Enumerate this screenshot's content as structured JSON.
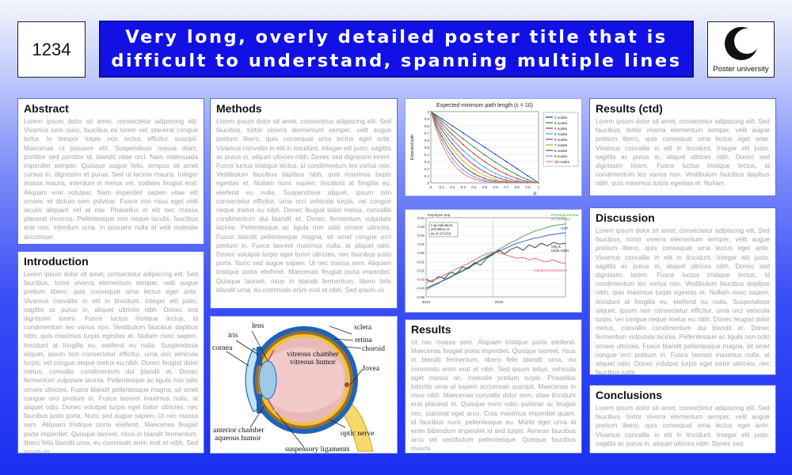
{
  "poster_id": "1234",
  "title": "Very long, overly detailed poster title  that is difficult to understand, spanning multiple lines",
  "logo": {
    "icon": "moon-logo-icon",
    "text": "Poster university"
  },
  "sections": {
    "abstract": {
      "heading": "Abstract",
      "body": "Lorem ipsum dolor sit amet, consectetur adipiscing elit. Vivamus sem nunc, faucibus eu lorem vel, placerat congue tortor. In tempor turpis non lectus efficitur suscipit. Maecenas ut posuere elit. Suspendisse massa diam, porttitor sed porttitor id, blandit vitae orci. Nam malesuada imperdiet semper. Quisque augue felis, tempus sit amet cursus in, dignissim et purus. Sed ut lacinia mauris. Integer massa mauris, interdum in metus vel, sodales feugiat erat. Aliquam erat volutpat. Nam imperdiet sapien vitae elit ornare, et dictum sem pulvinar. Fusce non risus eget velit iaculis aliquam vel at nisi. Phasellus in elit nec massa placerat rhoncus. Pellentesque non neque iaculis, faucibus erat non, interdum urna. In posuere nulla id velit molestie accumsan"
    },
    "introduction": {
      "heading": "Introduction",
      "body": "Lorem ipsum dolor sit amet, consectetur adipiscing elit. Sed faucibus, tortor viverra elementum semper, velit augue pretium libero, quis consequat urna lectus eget ante. Vivamus convallis in elit in tincidunt. Integer elit justo, sagittis ac purus in, aliquet ultrices nibh. Donec sed dignissim lorem. Fusce luctus tristique lectus, id condimentum leo varius non. Vestibulum faucibus dapibus nibh, quis maximus turpis egestas et. Nullam nunc sapien, tincidunt at fringilla eu, eleifend eu nulla. Suspendisse aliquet, ipsum non consectetur efficitur, urna orci vehicula turpis, vel congue neque metus eu nibh. Donec feugiat dolor metus, convallis condimentum dui blandit et. Donec fermentum vulputate lacinia. Pellentesque ac ligula non odio ornare ultricies. Fusce blandit pellentesque magna, sit amet congue orci pretium in. Fusce laoreet maximus nulla, at aliquet odio. Donec volutpat turpis eget tortor ultricies, nec faucibus justo porta. Nunc sed augue sapien. Ut nec massa sem. Aliquam tristique porta eleifend. Maecenas feugiat porta imperdiet. Quisque laoreet, risus in blandit fermentum, libero felis blandit urna, eu commodo enim erat et nibh. Sed ipsum us"
    },
    "methods": {
      "heading": "Methods",
      "body": "Lorem ipsum dolor sit amet, consectetur adipiscing elit. Sed faucibus, tortor viverra elementum semper, velit augue pretium libero, quis consequat urna lectus eget ante. Vivamus convallis in elit in tincidunt. Integer elit justo, sagittis ac purus in, aliquet ultrices nibh. Donec sed dignissim lorem. Fusce luctus tristique lectus, id condimentum leo varius non. Vestibulum faucibus dapibus nibh, quis maximus turpis egestas et. Nullam nunc sapien, tincidunt at fringilla eu, eleifend eu nulla. Suspendisse aliquet, ipsum non consectetur efficitur, urna orci vehicula turpis, vel congue neque metus eu nibh. Donec feugiat dolor metus, convallis condimentum dui blandit et. Donec fermentum vulputate lacinia. Pellentesque ac ligula non odio ornare ultricies. Fusce blandit pellentesque magna, sit amet congue orci pretium in. Fusce laoreet maximus nulla, at aliquet odio. Donec volutpat turpis eget tortor ultricies, nec faucibus justo porta. Nunc sed augue sapien. Ut nec massa sem. Aliquam tristique porta eleifend. Maecenas feugiat porta imperdiet. Quisque laoreet, risus in blandit fermentum, libero felis blandit urna, eu commodo enim erat et nibh. Sed ipsum us"
    },
    "results": {
      "heading": "Results",
      "body": "Ut nec massa sem. Aliquam tristique porta eleifend. Maecenas feugiat porta imperdiet. Quisque laoreet, risus in blandit fermentum, libero felis blandit urna, eu commodo enim erat et nibh. Sed ipsum tellus, vehicula eget massa ac, molestie pretium turpis. Phasellus lobortis urna ut sapien accumsan suscipit. Maecenas in risus nibh. Maecenas convallis dolor sem, vitae tincidunt erat placerat et. Quisque nunc odio, pulvinar ac feugiat nec, placerat eget arcu. Cras maximus imperdiet quam, id faucibus nunc pellentesque eu. Morbi eget urna id enim bibendum imperdiet id sed turpis. Aenean faucibus arcu vel vestibulum pellentesque. Quisque faucibus mauris"
    },
    "results_ctd": {
      "heading": "Results (ctd)",
      "body": "Lorem ipsum dolor sit amet, consectetur adipiscing elit. Sed faucibus, tortor viverra elementum semper, velit augue pretium libero, quis consequat urna lectus eget ante. Vivamus convallis in elit in tincidunt. Integer elit justo, sagittis ac purus in, aliquet ultrices nibh. Donec sed dignissim lorem. Fusce luctus tristique lectus, id condimentum leo varius non. Vestibulum faucibus dapibus nibh, quis maximus turpis egestas et. Nullam"
    },
    "discussion": {
      "heading": "Discussion",
      "body": "Lorem ipsum dolor sit amet, consectetur adipiscing elit. Sed faucibus, tortor viverra elementum semper, velit augue pretium libero, quis consequat urna lectus eget ante. Vivamus convallis in elit in tincidunt. Integer elit justo, sagittis ac purus in, aliquet ultrices nibh. Donec sed dignissim lorem. Fusce luctus tristique lectus, id condimentum leo varius non. Vestibulum faucibus dapibus nibh, quis maximus turpis egestas et. Nullam nunc sapien, tincidunt at fringilla eu, eleifend eu nulla. Suspendisse aliquet, ipsum non consectetur efficitur, urna orci vehicula turpis, vel congue neque metus eu nibh. Donec feugiat dolor metus, convallis condimentum dui blandit et. Donec fermentum vulputate lacinia. Pellentesque ac ligula non odio ornare ultricies. Fusce blandit pellentesque magna, sit amet congue orci pretium in. Fusce laoreet maximus nulla, at aliquet odio. Donec volutpat turpis eget tortor ultricies, nec faucibus justo"
    },
    "conclusions": {
      "heading": "Conclusions",
      "body": "Lorem ipsum dolor sit amet, consectetur adipiscing elit. Sed faucibus, tortor viverra elementum semper, velit augue pretium libero, quis consequat urna lectus eget ante. Vivamus convallis in elit in tincidunt. Integer elit justo, sagittis ac purus in, aliquet ultrices nibh. Donec sed"
    }
  },
  "figures": {
    "eye_diagram": {
      "labels": {
        "lens": "lens",
        "iris": "iris",
        "cornea": "cornea",
        "vitreous_chamber": "vitreous chamber",
        "vitreous_humor": "vitreous humor",
        "sclera": "sclera",
        "retina": "retina",
        "choroid": "choroid",
        "fovea": "fovea",
        "anterior_chamber": "anterior chamber",
        "aqueous_humor": "aqueous humor",
        "optic_nerve": "optic nerve",
        "suspensory_ligaments": "suspensory ligaments"
      }
    }
  },
  "chart_data": [
    {
      "type": "line",
      "title": "Expected minimum path length (c = 10)",
      "xlabel": "p",
      "ylabel": "Expected path",
      "xlim": [
        0,
        1
      ],
      "ylim": [
        0,
        1
      ],
      "xticks": [
        "0",
        "0.1",
        "0.2",
        "0.3",
        "0.4",
        "0.5",
        "0.6",
        "0.7",
        "0.8",
        "0.9",
        "1"
      ],
      "yticks": [
        "0",
        "0.1",
        "0.2",
        "0.3",
        "0.4",
        "0.5",
        "0.6",
        "0.7",
        "0.8",
        "0.9",
        "1"
      ],
      "legend_position": "right",
      "series": [
        {
          "name": "2 nodes",
          "color": "#1f3fb4",
          "exponent": 1.0
        },
        {
          "name": "3 nodes",
          "color": "#2e8b3a",
          "exponent": 1.35
        },
        {
          "name": "4 nodes",
          "color": "#d62a2a",
          "exponent": 1.75
        },
        {
          "name": "5 nodes",
          "color": "#20b0b8",
          "exponent": 2.2
        },
        {
          "name": "6 nodes",
          "color": "#a02ab0",
          "exponent": 2.7
        },
        {
          "name": "7 nodes",
          "color": "#c8b000",
          "exponent": 3.3
        },
        {
          "name": "8 nodes",
          "color": "#555555",
          "exponent": 4.0
        },
        {
          "name": "9 nodes",
          "color": "#8a8ad8",
          "exponent": 4.8
        },
        {
          "name": "10 nodes",
          "color": "#e08080",
          "exponent": 5.7
        }
      ]
    },
    {
      "type": "line",
      "title": "",
      "annotation_top": "employee pop.",
      "annotation_box": [
        "Log indicators,",
        "2014M12=0",
        "as of 1/21/15"
      ],
      "xlabel": "",
      "ylabel": "",
      "yticks": [
        "0.04",
        "0.03",
        "0.02",
        "0.01",
        "0.00",
        "-0.01",
        "-0.02",
        "-0.03",
        "-0.04",
        "-0.05"
      ],
      "ylim": [
        -0.05,
        0.04
      ],
      "xticks": [
        "2014",
        "2015"
      ],
      "x": [
        0,
        1,
        2,
        3,
        4,
        5,
        6,
        7,
        8,
        9,
        10,
        11,
        12,
        13,
        14,
        15,
        16,
        17,
        18,
        19,
        20,
        21,
        22,
        23
      ],
      "series": [
        {
          "name": "Personal income ex transfers",
          "color": "#3aa24a",
          "values": [
            -0.042,
            -0.038,
            -0.035,
            -0.03,
            -0.027,
            -0.023,
            -0.02,
            -0.016,
            -0.012,
            -0.008,
            -0.004,
            0.0,
            0.004,
            0.008,
            0.012,
            0.015,
            0.019,
            0.022,
            0.025,
            0.027,
            0.029,
            0.031,
            0.032,
            0.033
          ]
        },
        {
          "name": "NFP",
          "color": "#2a55d0",
          "values": [
            -0.04,
            -0.037,
            -0.034,
            -0.031,
            -0.028,
            -0.024,
            -0.021,
            -0.017,
            -0.013,
            -0.009,
            -0.005,
            -0.001,
            0.002,
            0.005,
            0.008,
            0.011,
            0.013,
            0.015,
            0.017,
            0.018,
            0.02,
            0.021,
            0.022,
            0.023
          ]
        },
        {
          "name": "Mfg & trade sales",
          "color": "#333333",
          "values": [
            -0.03,
            -0.033,
            -0.027,
            -0.029,
            -0.022,
            -0.024,
            -0.016,
            -0.018,
            -0.011,
            -0.014,
            -0.006,
            -0.002,
            0.003,
            -0.001,
            0.004,
            0.007,
            0.003,
            0.009,
            0.006,
            0.011,
            0.008,
            0.012,
            0.01,
            0.011
          ]
        },
        {
          "name": "Industrial production",
          "color": "#e06070",
          "values": [
            -0.034,
            -0.031,
            -0.029,
            -0.025,
            -0.022,
            -0.018,
            -0.015,
            -0.012,
            -0.008,
            -0.004,
            -0.001,
            0.001,
            0.0,
            -0.002,
            -0.004,
            -0.006,
            -0.005,
            -0.008,
            -0.006,
            -0.009,
            -0.01,
            -0.008,
            -0.011,
            -0.012
          ]
        }
      ]
    }
  ]
}
